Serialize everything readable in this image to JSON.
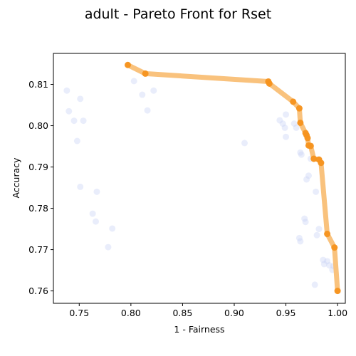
{
  "chart_data": {
    "type": "scatter",
    "title": "adult - Pareto Front for Rset",
    "xlabel": "1 - Fairness",
    "ylabel": "Accuracy",
    "xlim": [
      0.725,
      1.0075
    ],
    "ylim": [
      0.757,
      0.8175
    ],
    "xticks": [
      0.75,
      0.8,
      0.85,
      0.9,
      0.95,
      1.0
    ],
    "xtick_labels": [
      "0.75",
      "0.80",
      "0.85",
      "0.90",
      "0.95",
      "1.00"
    ],
    "yticks": [
      0.76,
      0.77,
      0.78,
      0.79,
      0.8,
      0.81
    ],
    "ytick_labels": [
      "0.76",
      "0.77",
      "0.78",
      "0.79",
      "0.80",
      "0.81"
    ],
    "grid": false,
    "colors": {
      "background_points": "#c7d3f5",
      "front_points": "#f5921e",
      "front_line": "#f9c27d"
    },
    "series": [
      {
        "role": "background",
        "points": [
          [
            0.738,
            0.8085
          ],
          [
            0.751,
            0.8065
          ],
          [
            0.74,
            0.8035
          ],
          [
            0.745,
            0.8012
          ],
          [
            0.754,
            0.8012
          ],
          [
            0.748,
            0.7963
          ],
          [
            0.751,
            0.7852
          ],
          [
            0.767,
            0.784
          ],
          [
            0.763,
            0.7787
          ],
          [
            0.766,
            0.7768
          ],
          [
            0.782,
            0.7751
          ],
          [
            0.778,
            0.7706
          ],
          [
            0.803,
            0.8108
          ],
          [
            0.811,
            0.8075
          ],
          [
            0.816,
            0.8037
          ],
          [
            0.822,
            0.8085
          ],
          [
            0.91,
            0.7958
          ],
          [
            0.944,
            0.8013
          ],
          [
            0.947,
            0.8005
          ],
          [
            0.949,
            0.7995
          ],
          [
            0.95,
            0.8027
          ],
          [
            0.95,
            0.7973
          ],
          [
            0.958,
            0.8005
          ],
          [
            0.96,
            0.7995
          ],
          [
            0.964,
            0.7935
          ],
          [
            0.965,
            0.793
          ],
          [
            0.968,
            0.7775
          ],
          [
            0.969,
            0.7767
          ],
          [
            0.97,
            0.787
          ],
          [
            0.972,
            0.7879
          ],
          [
            0.974,
            0.792
          ],
          [
            0.963,
            0.7728
          ],
          [
            0.964,
            0.772
          ],
          [
            0.978,
            0.7615
          ],
          [
            0.979,
            0.784
          ],
          [
            0.98,
            0.7735
          ],
          [
            0.982,
            0.775
          ],
          [
            0.986,
            0.7675
          ],
          [
            0.987,
            0.7665
          ],
          [
            0.99,
            0.7672
          ],
          [
            0.992,
            0.7662
          ],
          [
            0.995,
            0.7651
          ],
          [
            0.996,
            0.766
          ]
        ]
      },
      {
        "role": "pareto-front",
        "points": [
          [
            0.797,
            0.8147
          ],
          [
            0.814,
            0.8126
          ],
          [
            0.933,
            0.8107
          ],
          [
            0.934,
            0.8102
          ],
          [
            0.957,
            0.8058
          ],
          [
            0.963,
            0.8042
          ],
          [
            0.964,
            0.8007
          ],
          [
            0.969,
            0.7982
          ],
          [
            0.97,
            0.7977
          ],
          [
            0.971,
            0.797
          ],
          [
            0.972,
            0.7952
          ],
          [
            0.974,
            0.7951
          ],
          [
            0.977,
            0.792
          ],
          [
            0.982,
            0.7918
          ],
          [
            0.984,
            0.791
          ],
          [
            0.99,
            0.7738
          ],
          [
            0.997,
            0.7705
          ],
          [
            1.0,
            0.76
          ]
        ]
      }
    ]
  }
}
